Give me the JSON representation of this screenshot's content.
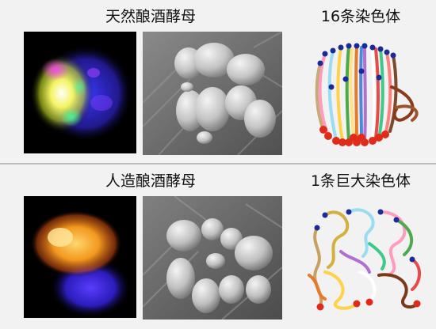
{
  "panels": [
    {
      "left_title": "天然酿酒酵母",
      "right_title": "16条染色体"
    },
    {
      "left_title": "人造酿酒酵母",
      "right_title": "1条巨大染色体"
    }
  ]
}
